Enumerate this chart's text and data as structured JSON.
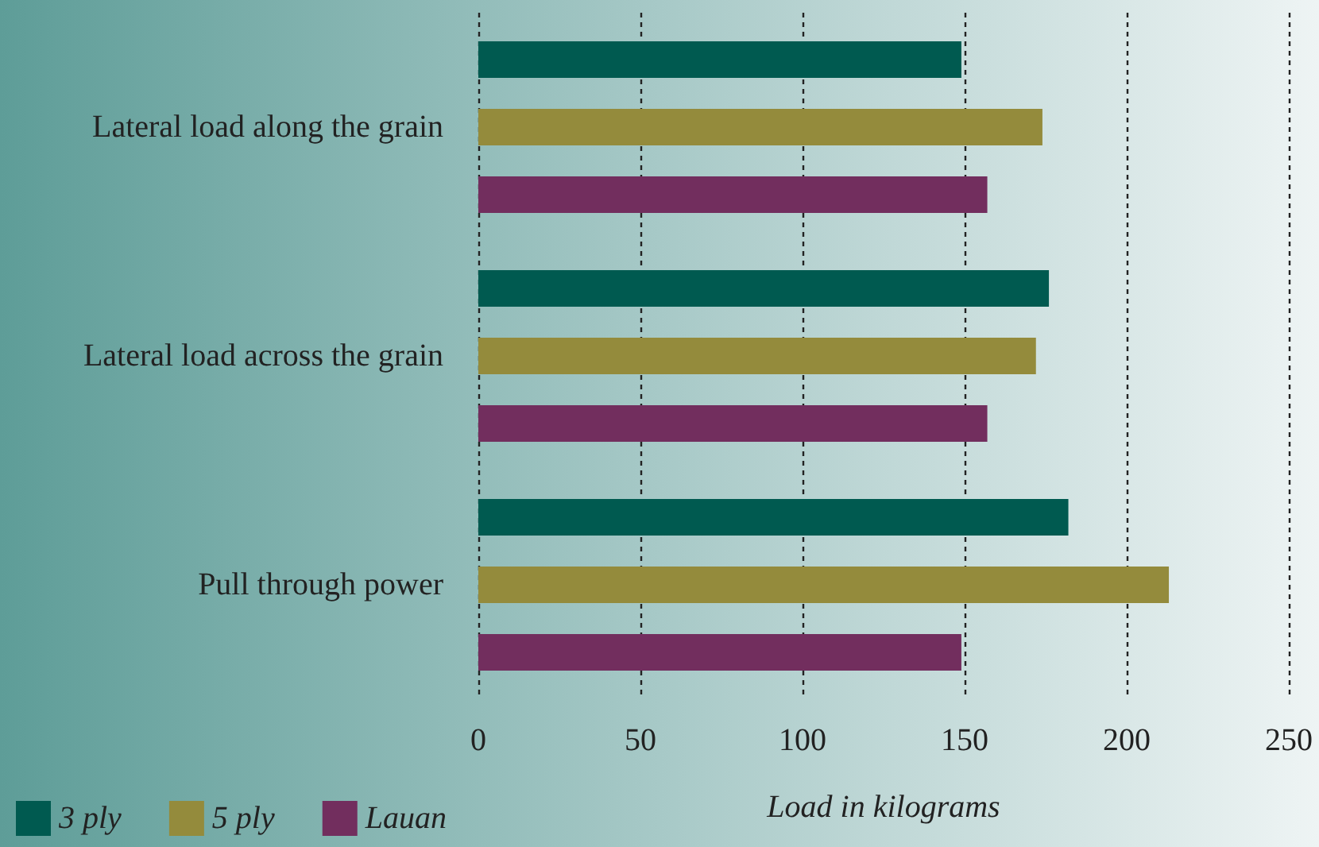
{
  "chart_data": {
    "type": "bar",
    "orientation": "horizontal",
    "xlabel": "Load in kilograms",
    "categories": [
      "Lateral load along the grain",
      "Lateral load across the grain",
      "Pull through power"
    ],
    "series": [
      {
        "name": "3 ply",
        "color": "#005a50",
        "values": [
          149,
          176,
          182
        ]
      },
      {
        "name": "5 ply",
        "color": "#948b3c",
        "values": [
          174,
          172,
          213
        ]
      },
      {
        "name": "Lauan",
        "color": "#722e5e",
        "values": [
          157,
          157,
          149
        ]
      }
    ],
    "xlim": [
      0,
      250
    ],
    "xticks": [
      0,
      50,
      100,
      150,
      200,
      250
    ],
    "grid": "x",
    "legend": "bottom left"
  }
}
